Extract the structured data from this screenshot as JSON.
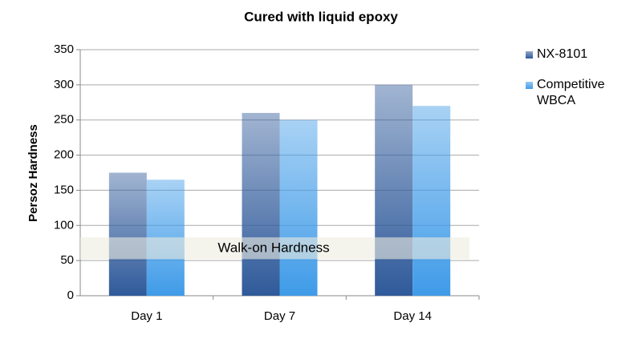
{
  "chart_data": {
    "type": "bar",
    "title": "Cured with liquid epoxy",
    "y_label": "Persoz Hardness",
    "categories": [
      "Day 1",
      "Day 7",
      "Day 14"
    ],
    "series": [
      {
        "name": "NX-8101",
        "color": "#2f5a9a",
        "values": [
          175,
          260,
          300
        ]
      },
      {
        "name": "Competitive WBCA",
        "color": "#3f9be8",
        "values": [
          165,
          250,
          270
        ]
      }
    ],
    "ylim": [
      0,
      350
    ],
    "yticks": [
      0,
      50,
      100,
      150,
      200,
      250,
      300,
      350
    ],
    "grid": true,
    "annotation": {
      "text": "Walk-on Hardness",
      "range": [
        52,
        83
      ]
    },
    "legend": "right"
  }
}
